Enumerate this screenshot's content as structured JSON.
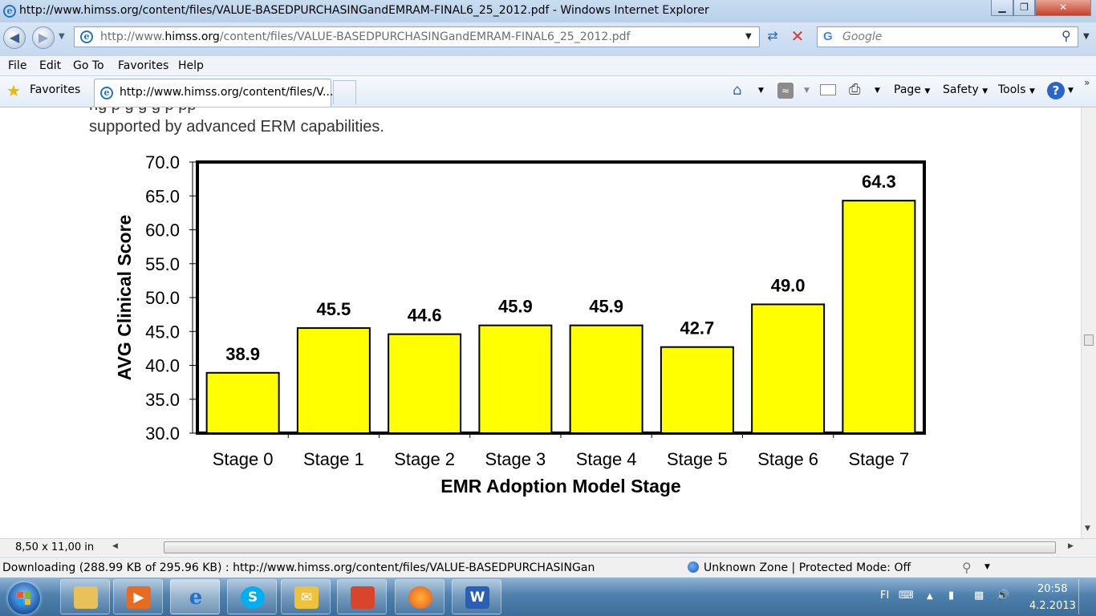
{
  "window": {
    "title": "http://www.himss.org/content/files/VALUE-BASEDPURCHASINGandEMRAM-FINAL6_25_2012.pdf - Windows Internet Explorer",
    "minimize": "▁",
    "restore": "❐",
    "close": "✕"
  },
  "address_bar": {
    "url_prefix": "http://www.",
    "url_domain": "himss.org",
    "url_rest": "/content/files/VALUE-BASEDPURCHASINGandEMRAM-FINAL6_25_2012.pdf"
  },
  "search_bar": {
    "placeholder": "Google"
  },
  "menu": [
    "File",
    "Edit",
    "Go To",
    "Favorites",
    "Help"
  ],
  "favorites_bar": {
    "favorites_label": "Favorites",
    "tab_title": "http://www.himss.org/content/files/V...",
    "commands": {
      "page": "Page",
      "safety": "Safety",
      "tools": "Tools"
    }
  },
  "document": {
    "partial_line": "ng        p                          g       g      g                   p                 pp",
    "text_line": "supported by advanced ERM capabilities."
  },
  "chart_data": {
    "type": "bar",
    "categories": [
      "Stage 0",
      "Stage 1",
      "Stage 2",
      "Stage 3",
      "Stage 4",
      "Stage 5",
      "Stage 6",
      "Stage 7"
    ],
    "values": [
      38.9,
      45.5,
      44.6,
      45.9,
      45.9,
      42.7,
      49.0,
      64.3
    ],
    "data_labels": [
      "38.9",
      "45.5",
      "44.6",
      "45.9",
      "45.9",
      "42.7",
      "49.0",
      "64.3"
    ],
    "xlabel": "EMR Adoption Model Stage",
    "ylabel": "AVG Clinical Score",
    "ylim": [
      30,
      70
    ],
    "yticks": [
      "30.0",
      "35.0",
      "40.0",
      "45.0",
      "50.0",
      "55.0",
      "60.0",
      "65.0",
      "70.0"
    ],
    "bar_color": "#ffff00",
    "grid": false
  },
  "hscroll": {
    "page_size": "8,50 x 11,00 in"
  },
  "status": {
    "download_text": "Downloading (288.99 KB of 295.96 KB) : http://www.himss.org/content/files/VALUE-BASEDPURCHASINGan",
    "zone": "Unknown Zone | Protected Mode: Off"
  },
  "taskbar": {
    "lang": "FI",
    "time": "20:58",
    "date": "4.2.2013",
    "apps": [
      "explorer-folder",
      "media-player",
      "internet-explorer",
      "skype",
      "outlook",
      "presentation",
      "firefox",
      "word"
    ]
  }
}
